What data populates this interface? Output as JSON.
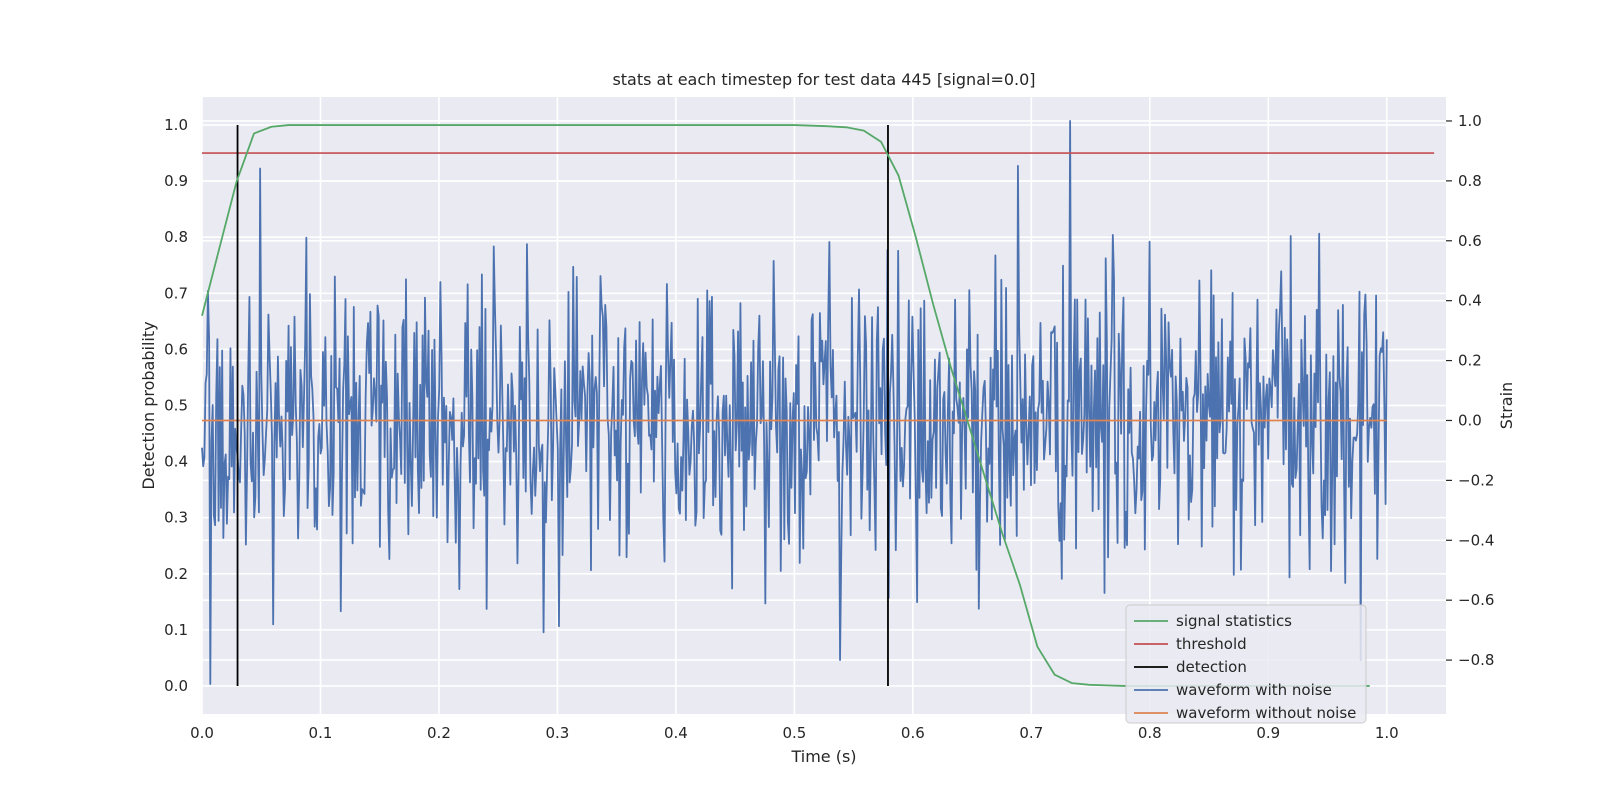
{
  "chart_data": {
    "type": "line",
    "title": "stats at each timestep for test data 445 [signal=0.0]",
    "xlabel": "Time (s)",
    "ylabel": "Detection probability",
    "ylabel_right": "Strain",
    "xlim": [
      0.0,
      1.05
    ],
    "ylim": [
      -0.05,
      1.05
    ],
    "ylim_right": [
      -0.98,
      1.08
    ],
    "x_ticks": [
      "0.0",
      "0.1",
      "0.2",
      "0.3",
      "0.4",
      "0.5",
      "0.6",
      "0.7",
      "0.8",
      "0.9",
      "1.0"
    ],
    "y_ticks": [
      "0.0",
      "0.1",
      "0.2",
      "0.3",
      "0.4",
      "0.5",
      "0.6",
      "0.7",
      "0.8",
      "0.9",
      "1.0"
    ],
    "y_ticks_right": [
      "−0.8",
      "−0.6",
      "−0.4",
      "−0.2",
      "0.0",
      "0.2",
      "0.4",
      "0.6",
      "0.8",
      "1.0"
    ],
    "grid": true,
    "legend_position": "lower-right",
    "colors": {
      "plot_bg": "#eaeaf2",
      "grid": "#ffffff",
      "signal_statistics": "#55a868",
      "threshold": "#c44e52",
      "detection": "#000000",
      "waveform_noise": "#4c72b0",
      "waveform_clean": "#dd8452"
    },
    "series": [
      {
        "name": "signal statistics",
        "axis": "left",
        "x": [
          0.0,
          0.0146,
          0.0293,
          0.0439,
          0.0586,
          0.0732,
          0.0879,
          0.5,
          0.5273,
          0.5439,
          0.5586,
          0.5732,
          0.5879,
          0.6025,
          0.6172,
          0.6318,
          0.6465,
          0.6611,
          0.6758,
          0.6904,
          0.7051,
          0.7197,
          0.7344,
          0.749,
          0.7637,
          0.7783,
          0.793,
          0.9856
        ],
        "y": [
          0.66,
          0.78,
          0.9,
          0.985,
          0.997,
          1.0,
          1.0,
          1.0,
          0.998,
          0.996,
          0.99,
          0.97,
          0.91,
          0.8,
          0.68,
          0.57,
          0.47,
          0.37,
          0.27,
          0.18,
          0.07,
          0.02,
          0.005,
          0.002,
          0.001,
          0.0,
          0.0,
          0.0
        ]
      },
      {
        "name": "threshold",
        "axis": "left",
        "x": [
          0.0,
          1.04
        ],
        "y": [
          0.95,
          0.95
        ]
      },
      {
        "name": "detection",
        "axis": "left",
        "x": [
          0.03,
          0.579
        ],
        "y_range": [
          0.0,
          1.0
        ]
      },
      {
        "name": "waveform with noise",
        "axis": "right",
        "x_range": [
          0.0,
          1.0
        ],
        "samples": 1000,
        "stddev": 0.25,
        "peak": {
          "x": 0.733,
          "y": 1.0
        },
        "min": {
          "x": 0.007,
          "y": -0.88
        }
      },
      {
        "name": "waveform without noise",
        "axis": "right",
        "x": [
          0.0,
          1.0
        ],
        "y": [
          0.0,
          0.0
        ]
      }
    ]
  }
}
